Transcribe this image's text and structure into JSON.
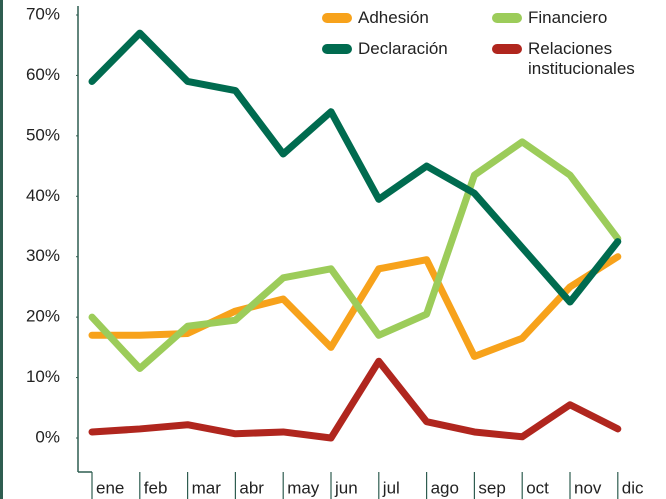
{
  "chart_data": {
    "type": "line",
    "categories": [
      "ene",
      "feb",
      "mar",
      "abr",
      "may",
      "jun",
      "jul",
      "ago",
      "sep",
      "oct",
      "nov",
      "dic"
    ],
    "series": [
      {
        "name": "Adhesión",
        "color": "#f7a21b",
        "values": [
          17,
          17,
          17.3,
          21,
          23,
          15,
          28,
          29.5,
          13.5,
          16.5,
          25,
          30
        ]
      },
      {
        "name": "Financiero",
        "color": "#9ccc5a",
        "values": [
          20,
          11.5,
          18.5,
          19.5,
          26.5,
          28,
          17,
          20.5,
          43.5,
          49,
          43.5,
          33
        ]
      },
      {
        "name": "Declaración",
        "color": "#006b4f",
        "values": [
          59,
          67,
          59,
          57.5,
          47,
          54,
          39.5,
          45,
          40.5,
          31.5,
          22.5,
          32.5
        ]
      },
      {
        "name": "Relaciones institucionales",
        "color": "#b0261e",
        "values": [
          1,
          1.5,
          2.2,
          0.7,
          1,
          0,
          12.7,
          2.7,
          1,
          0.2,
          5.5,
          1.5
        ]
      }
    ],
    "ylim": [
      0,
      70
    ],
    "yticks": [
      {
        "value": 0,
        "label": "0%"
      },
      {
        "value": 10,
        "label": "10%"
      },
      {
        "value": 20,
        "label": "20%"
      },
      {
        "value": 30,
        "label": "30%"
      },
      {
        "value": 40,
        "label": "40%"
      },
      {
        "value": 50,
        "label": "50%"
      },
      {
        "value": 60,
        "label": "60%"
      },
      {
        "value": 70,
        "label": "70%"
      }
    ],
    "grid": false
  }
}
